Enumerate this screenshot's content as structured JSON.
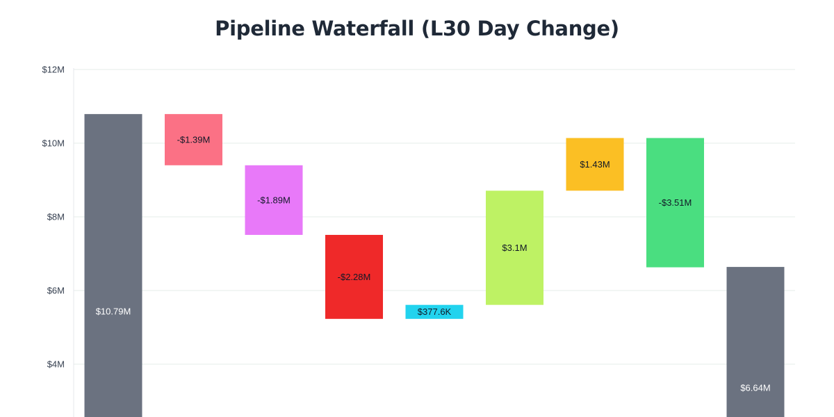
{
  "chart_data": {
    "type": "waterfall",
    "title": "Pipeline Waterfall (L30 Day Change)",
    "ylim": [
      2,
      12
    ],
    "grid": true,
    "yticks": [
      {
        "value": 12,
        "label": "$12M"
      },
      {
        "value": 10,
        "label": "$10M"
      },
      {
        "value": 8,
        "label": "$8M"
      },
      {
        "value": 6,
        "label": "$6M"
      },
      {
        "value": 4,
        "label": "$4M"
      }
    ],
    "bars": [
      {
        "kind": "total",
        "start": 0,
        "end": 10.79,
        "label": "$10.79M",
        "color": "#6b7280",
        "label_color": "#ffffff"
      },
      {
        "kind": "change",
        "start": 10.79,
        "end": 9.4,
        "label": "-$1.39M",
        "color": "#fb7185",
        "label_color": "#111827"
      },
      {
        "kind": "change",
        "start": 9.4,
        "end": 7.51,
        "label": "-$1.89M",
        "color": "#e879f9",
        "label_color": "#111827"
      },
      {
        "kind": "change",
        "start": 7.51,
        "end": 5.23,
        "label": "-$2.28M",
        "color": "#ef2929",
        "label_color": "#111827"
      },
      {
        "kind": "change",
        "start": 5.23,
        "end": 5.61,
        "label": "$377.6K",
        "color": "#22d3ee",
        "label_color": "#111827"
      },
      {
        "kind": "change",
        "start": 5.61,
        "end": 8.71,
        "label": "$3.1M",
        "color": "#bef264",
        "label_color": "#111827"
      },
      {
        "kind": "change",
        "start": 8.71,
        "end": 10.14,
        "label": "$1.43M",
        "color": "#fbbf24",
        "label_color": "#111827"
      },
      {
        "kind": "change",
        "start": 10.14,
        "end": 6.63,
        "label": "-$3.51M",
        "color": "#4ade80",
        "label_color": "#111827"
      },
      {
        "kind": "total",
        "start": 0,
        "end": 6.64,
        "label": "$6.64M",
        "color": "#6b7280",
        "label_color": "#ffffff"
      }
    ]
  }
}
